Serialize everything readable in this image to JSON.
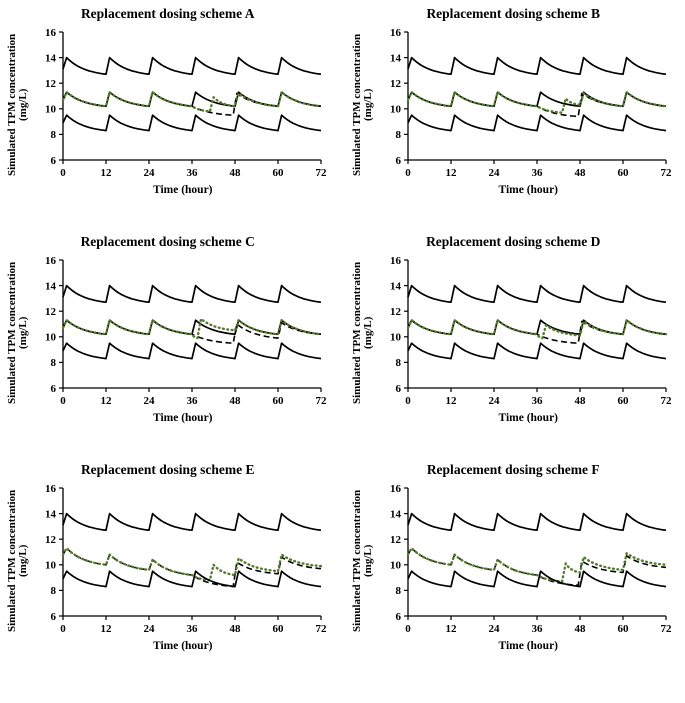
{
  "page": {
    "background": "#ffffff"
  },
  "chart_data": {
    "type": "line",
    "layout": {
      "rows": 3,
      "cols": 2,
      "grid": false,
      "legend": "none"
    },
    "xlabel": "Time (hour)",
    "ylabel_line1": "Simulated TPM concentration",
    "ylabel_line2": "(mg/L)",
    "xlim": [
      0,
      72
    ],
    "ylim": [
      6,
      16
    ],
    "x_ticks": [
      0,
      12,
      24,
      36,
      48,
      60,
      72
    ],
    "y_ticks": [
      6,
      8,
      10,
      12,
      14,
      16
    ],
    "colors": {
      "solid": "#000000",
      "dashed": "#000000",
      "dotted": "#557a2d",
      "axis": "#000000"
    },
    "series_library": {
      "upper": {
        "label": "high-exposure simulated profile",
        "style": "solid",
        "points": [
          [
            0,
            13.1
          ],
          [
            1,
            14.0
          ],
          [
            12,
            12.7
          ],
          [
            13,
            14.0
          ],
          [
            24,
            12.7
          ],
          [
            25,
            14.0
          ],
          [
            36,
            12.7
          ],
          [
            37,
            14.0
          ],
          [
            48,
            12.7
          ],
          [
            49,
            14.0
          ],
          [
            60,
            12.7
          ],
          [
            61,
            14.0
          ],
          [
            72,
            12.7
          ]
        ]
      },
      "lower": {
        "label": "low-exposure simulated profile",
        "style": "solid",
        "points": [
          [
            0,
            8.9
          ],
          [
            1,
            9.5
          ],
          [
            12,
            8.3
          ],
          [
            13,
            9.5
          ],
          [
            24,
            8.3
          ],
          [
            25,
            9.5
          ],
          [
            36,
            8.3
          ],
          [
            37,
            9.5
          ],
          [
            48,
            8.3
          ],
          [
            49,
            9.5
          ],
          [
            60,
            8.3
          ],
          [
            61,
            9.5
          ],
          [
            72,
            8.3
          ]
        ]
      },
      "mid_ref": {
        "label": "reference dosing profile",
        "style": "solid",
        "points": [
          [
            0,
            10.7
          ],
          [
            1,
            11.3
          ],
          [
            12,
            10.2
          ],
          [
            13,
            11.3
          ],
          [
            24,
            10.2
          ],
          [
            25,
            11.3
          ],
          [
            36,
            10.2
          ],
          [
            37,
            11.3
          ],
          [
            48,
            10.2
          ],
          [
            49,
            11.3
          ],
          [
            60,
            10.2
          ],
          [
            61,
            11.3
          ],
          [
            72,
            10.2
          ]
        ]
      },
      "mid_missed_A": {
        "label": "missed dose, no replacement",
        "style": "dashed",
        "points": [
          [
            0,
            10.7
          ],
          [
            1,
            11.3
          ],
          [
            12,
            10.2
          ],
          [
            13,
            11.3
          ],
          [
            24,
            10.2
          ],
          [
            25,
            11.3
          ],
          [
            36,
            10.2
          ],
          [
            47.5,
            9.5
          ],
          [
            48.5,
            11.2
          ],
          [
            60,
            10.2
          ],
          [
            61,
            11.3
          ],
          [
            72,
            10.2
          ]
        ]
      },
      "mid_missed_B": {
        "label": "missed dose, no replacement",
        "style": "dashed",
        "points": [
          [
            0,
            10.7
          ],
          [
            1,
            11.3
          ],
          [
            12,
            10.2
          ],
          [
            13,
            11.3
          ],
          [
            24,
            10.2
          ],
          [
            25,
            11.3
          ],
          [
            36,
            10.2
          ],
          [
            47.5,
            9.4
          ],
          [
            48.5,
            11.2
          ],
          [
            60,
            10.2
          ],
          [
            61,
            11.3
          ],
          [
            72,
            10.2
          ]
        ]
      },
      "mid_missed_C": {
        "label": "missed dose, no replacement",
        "style": "dashed",
        "points": [
          [
            0,
            10.7
          ],
          [
            1,
            11.3
          ],
          [
            12,
            10.2
          ],
          [
            13,
            11.3
          ],
          [
            24,
            10.2
          ],
          [
            25,
            11.3
          ],
          [
            36,
            10.2
          ],
          [
            47.5,
            9.5
          ],
          [
            48.5,
            11.0
          ],
          [
            60,
            9.9
          ],
          [
            61,
            11.1
          ],
          [
            72,
            10.2
          ]
        ]
      },
      "mid_repl_A": {
        "label": "replacement dosing scheme",
        "style": "dotted",
        "points": [
          [
            0,
            10.7
          ],
          [
            1,
            11.3
          ],
          [
            12,
            10.2
          ],
          [
            13,
            11.3
          ],
          [
            24,
            10.2
          ],
          [
            25,
            11.3
          ],
          [
            36,
            10.2
          ],
          [
            41,
            9.8
          ],
          [
            42,
            10.9
          ],
          [
            48,
            10.2
          ],
          [
            49,
            11.2
          ],
          [
            60,
            10.2
          ],
          [
            61,
            11.3
          ],
          [
            72,
            10.2
          ]
        ]
      },
      "mid_repl_B": {
        "label": "replacement dosing scheme",
        "style": "dotted",
        "points": [
          [
            0,
            10.7
          ],
          [
            1,
            11.3
          ],
          [
            12,
            10.2
          ],
          [
            13,
            11.3
          ],
          [
            24,
            10.2
          ],
          [
            25,
            11.3
          ],
          [
            36,
            10.2
          ],
          [
            43,
            9.7
          ],
          [
            44,
            10.8
          ],
          [
            48,
            10.3
          ],
          [
            49,
            11.2
          ],
          [
            60,
            10.2
          ],
          [
            61,
            11.3
          ],
          [
            72,
            10.2
          ]
        ]
      },
      "mid_repl_C": {
        "label": "replacement dosing scheme",
        "style": "dotted",
        "points": [
          [
            0,
            10.7
          ],
          [
            1,
            11.3
          ],
          [
            12,
            10.2
          ],
          [
            13,
            11.3
          ],
          [
            24,
            10.2
          ],
          [
            25,
            11.3
          ],
          [
            36,
            10.2
          ],
          [
            37.5,
            9.9
          ],
          [
            38.5,
            11.4
          ],
          [
            48,
            10.5
          ],
          [
            49,
            11.3
          ],
          [
            60,
            10.2
          ],
          [
            61,
            11.3
          ],
          [
            72,
            10.2
          ]
        ]
      },
      "mid_repl_D": {
        "label": "replacement dosing scheme",
        "style": "dotted",
        "points": [
          [
            0,
            10.7
          ],
          [
            1,
            11.3
          ],
          [
            12,
            10.2
          ],
          [
            13,
            11.3
          ],
          [
            24,
            10.2
          ],
          [
            25,
            11.3
          ],
          [
            36,
            10.2
          ],
          [
            37.5,
            9.9
          ],
          [
            38.5,
            10.9
          ],
          [
            48,
            10.1
          ],
          [
            49,
            11.2
          ],
          [
            60,
            10.2
          ],
          [
            61,
            11.3
          ],
          [
            72,
            10.2
          ]
        ]
      },
      "mid_missed_E": {
        "label": "missed dose, no replacement",
        "style": "dashed",
        "points": [
          [
            0,
            10.8
          ],
          [
            1,
            11.3
          ],
          [
            12,
            10.0
          ],
          [
            13,
            10.8
          ],
          [
            24,
            9.6
          ],
          [
            25,
            10.4
          ],
          [
            36,
            9.2
          ],
          [
            47.5,
            8.3
          ],
          [
            48.5,
            10.2
          ],
          [
            60,
            9.3
          ],
          [
            61,
            10.6
          ],
          [
            72,
            9.7
          ]
        ]
      },
      "mid_repl_E": {
        "label": "replacement dosing scheme",
        "style": "dotted",
        "points": [
          [
            0,
            10.8
          ],
          [
            1,
            11.3
          ],
          [
            12,
            10.0
          ],
          [
            13,
            10.8
          ],
          [
            24,
            9.6
          ],
          [
            25,
            10.4
          ],
          [
            36,
            9.2
          ],
          [
            41,
            8.8
          ],
          [
            42,
            10.0
          ],
          [
            48,
            9.2
          ],
          [
            49,
            10.5
          ],
          [
            60,
            9.5
          ],
          [
            61,
            10.8
          ],
          [
            72,
            9.9
          ]
        ]
      },
      "mid_missed_F": {
        "label": "missed dose, no replacement",
        "style": "dashed",
        "points": [
          [
            0,
            10.8
          ],
          [
            1,
            11.3
          ],
          [
            12,
            10.0
          ],
          [
            13,
            10.8
          ],
          [
            24,
            9.6
          ],
          [
            25,
            10.4
          ],
          [
            36,
            9.2
          ],
          [
            47.5,
            8.4
          ],
          [
            48.5,
            10.3
          ],
          [
            60,
            9.4
          ],
          [
            61,
            10.7
          ],
          [
            72,
            9.8
          ]
        ]
      },
      "mid_repl_F": {
        "label": "replacement dosing scheme",
        "style": "dotted",
        "points": [
          [
            0,
            10.8
          ],
          [
            1,
            11.3
          ],
          [
            12,
            10.0
          ],
          [
            13,
            10.8
          ],
          [
            24,
            9.6
          ],
          [
            25,
            10.4
          ],
          [
            36,
            9.2
          ],
          [
            43,
            8.7
          ],
          [
            44,
            10.1
          ],
          [
            48,
            9.4
          ],
          [
            49,
            10.6
          ],
          [
            60,
            9.6
          ],
          [
            61,
            10.9
          ],
          [
            72,
            10.0
          ]
        ]
      }
    },
    "charts": [
      {
        "id": "A",
        "title": "Replacement dosing scheme A",
        "series": [
          "upper",
          "mid_ref",
          "mid_missed_A",
          "mid_repl_A",
          "lower"
        ]
      },
      {
        "id": "B",
        "title": "Replacement dosing scheme B",
        "series": [
          "upper",
          "mid_ref",
          "mid_missed_B",
          "mid_repl_B",
          "lower"
        ]
      },
      {
        "id": "C",
        "title": "Replacement dosing scheme C",
        "series": [
          "upper",
          "mid_ref",
          "mid_missed_C",
          "mid_repl_C",
          "lower"
        ]
      },
      {
        "id": "D",
        "title": "Replacement dosing scheme D",
        "series": [
          "upper",
          "mid_ref",
          "mid_missed_A",
          "mid_repl_D",
          "lower"
        ]
      },
      {
        "id": "E",
        "title": "Replacement dosing scheme E",
        "series": [
          "upper",
          "mid_missed_E",
          "mid_repl_E",
          "lower"
        ]
      },
      {
        "id": "F",
        "title": "Replacement dosing scheme F",
        "series": [
          "upper",
          "mid_missed_F",
          "mid_repl_F",
          "lower"
        ]
      }
    ]
  }
}
